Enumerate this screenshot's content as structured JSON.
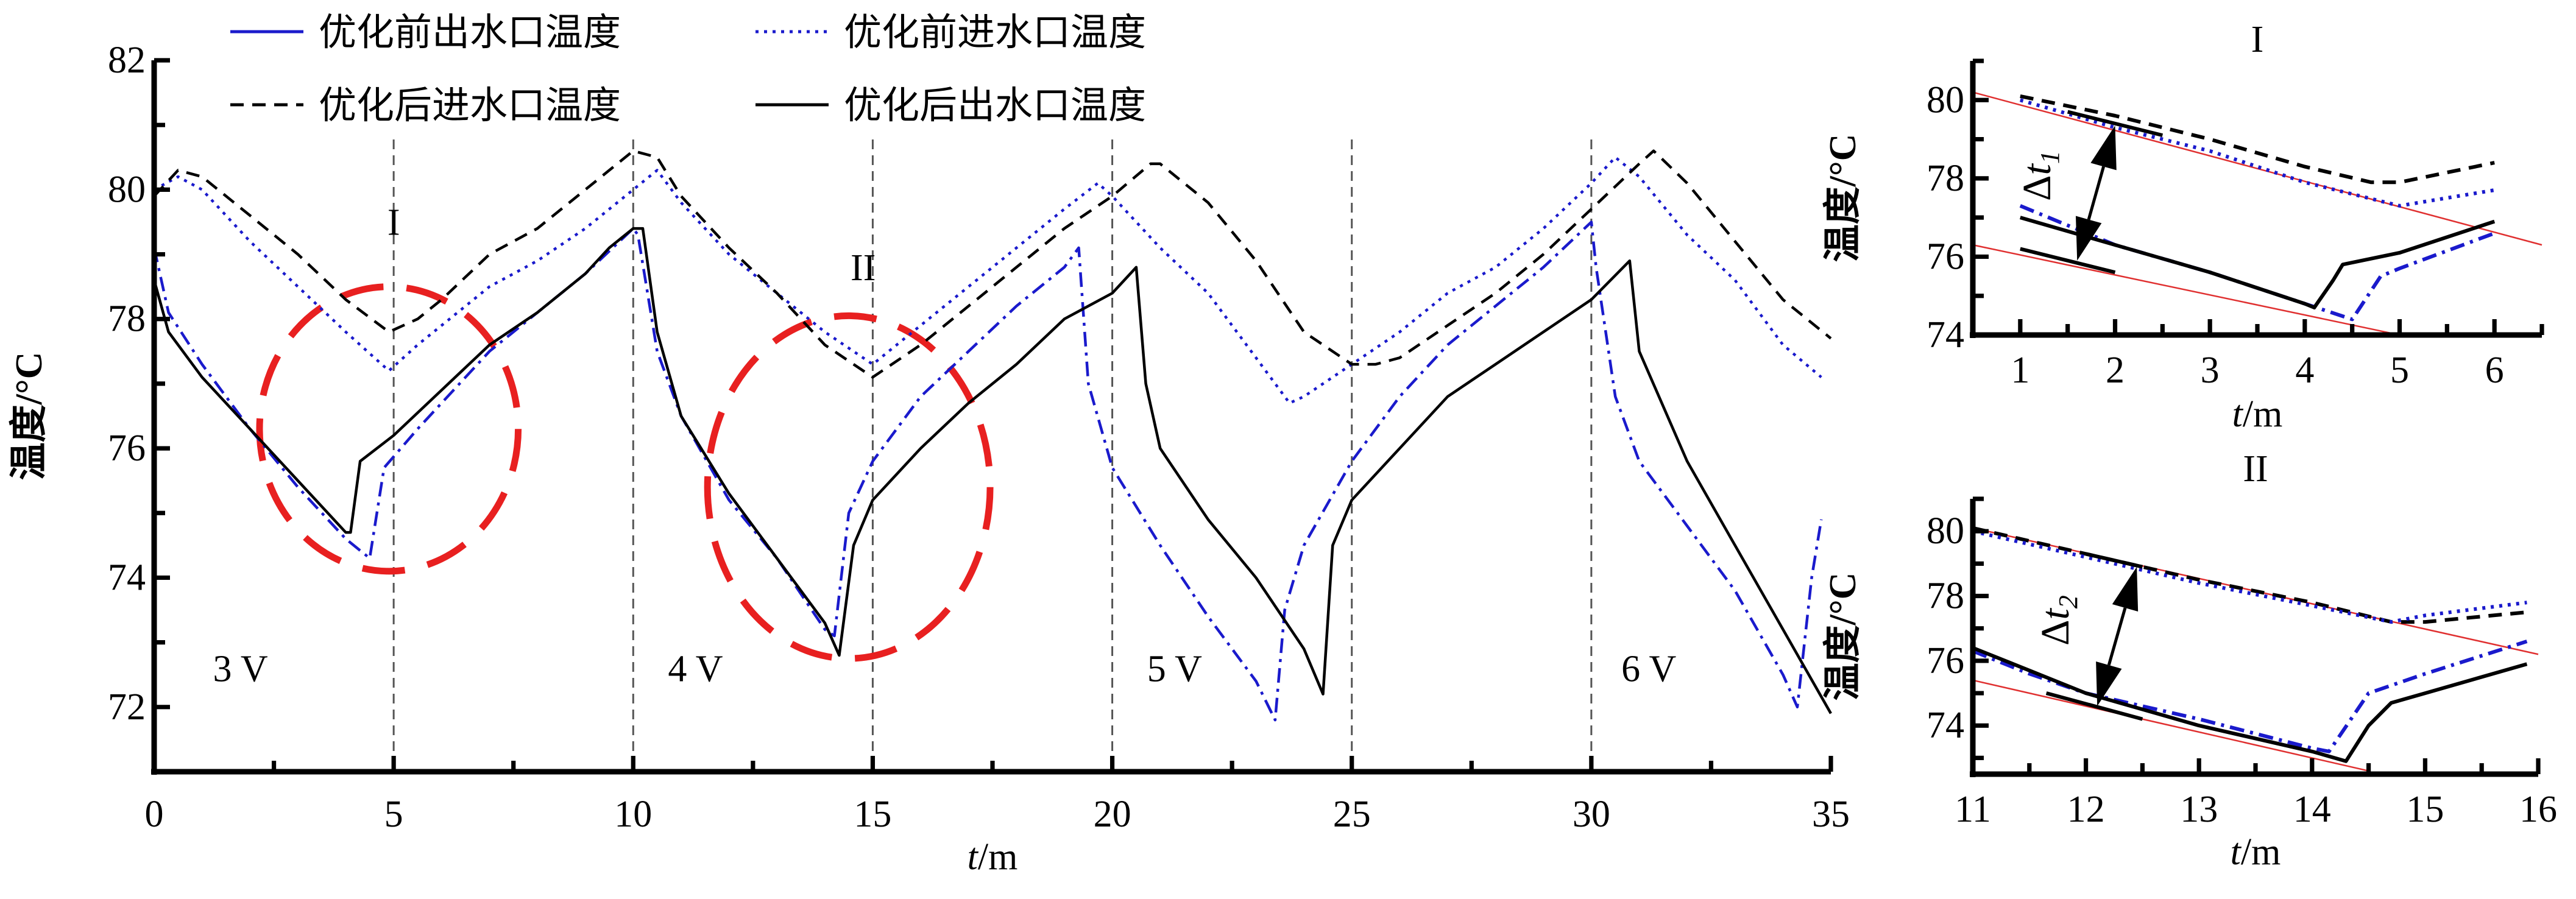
{
  "chart_data": [
    {
      "type": "line",
      "id": "main",
      "xlabel_t": "t",
      "xlabel_unit": "/m",
      "ylabel": "温度/°C",
      "xlim": [
        0,
        35
      ],
      "ylim": [
        71,
        82
      ],
      "xticks": [
        0,
        5,
        10,
        15,
        20,
        25,
        30,
        35
      ],
      "yticks": [
        72,
        74,
        76,
        78,
        80,
        82
      ],
      "vlines": [
        5,
        10,
        15,
        20,
        25,
        30
      ],
      "annotations": [
        {
          "text": "I",
          "x": 5,
          "y": 79.3
        },
        {
          "text": "II",
          "x": 14.8,
          "y": 78.6
        },
        {
          "text": "3 V",
          "x": 1.8,
          "y": 72.4
        },
        {
          "text": "4 V",
          "x": 11.3,
          "y": 72.4
        },
        {
          "text": "5 V",
          "x": 21.3,
          "y": 72.4
        },
        {
          "text": "6 V",
          "x": 31.2,
          "y": 72.4
        }
      ],
      "highlight_ellipses": [
        {
          "label": "I",
          "cx": 4.9,
          "cy": 76.3,
          "rx": 2.7,
          "ry": 2.2
        },
        {
          "label": "II",
          "cx": 14.5,
          "cy": 75.4,
          "rx": 2.95,
          "ry": 2.65
        }
      ],
      "legend_position": "top",
      "series": [
        {
          "name": "优化前出水口温度",
          "style": "dashdot",
          "legend_style": "solid",
          "color": "#1a1acc",
          "x": [
            0,
            0.3,
            1,
            2,
            3,
            4,
            4.5,
            4.8,
            5.5,
            7,
            8,
            9,
            10,
            10.1,
            10.5,
            11,
            12,
            13,
            14,
            14.2,
            14.5,
            15,
            16,
            17,
            18,
            19,
            19.3,
            19.5,
            20,
            21,
            22,
            23,
            23.4,
            23.6,
            24,
            25,
            26,
            27,
            28,
            29,
            30,
            30.1,
            30.5,
            31,
            32,
            33,
            34,
            34.3,
            34.6,
            34.8
          ],
          "y": [
            79.1,
            78.1,
            77.3,
            76.3,
            75.4,
            74.6,
            74.3,
            75.7,
            76.3,
            77.5,
            78.1,
            78.7,
            79.4,
            79.3,
            77.5,
            76.5,
            75.2,
            74.3,
            73.2,
            73.1,
            75.0,
            75.8,
            76.8,
            77.5,
            78.2,
            78.8,
            79.1,
            77.0,
            75.7,
            74.5,
            73.4,
            72.4,
            71.8,
            73.5,
            74.5,
            75.8,
            76.8,
            77.6,
            78.2,
            78.8,
            79.5,
            78.8,
            76.8,
            75.8,
            74.8,
            73.8,
            72.5,
            72.0,
            74.0,
            74.9
          ]
        },
        {
          "name": "优化前进水口温度",
          "style": "dotted",
          "color": "#1a1acc",
          "x": [
            0,
            0.5,
            1,
            2,
            3,
            4,
            4.9,
            5.5,
            7,
            8,
            9,
            10,
            10.5,
            11,
            12,
            13,
            14,
            15,
            15.5,
            16,
            17,
            18,
            19,
            19.7,
            20,
            21,
            22,
            23,
            23.7,
            24,
            25,
            26,
            27,
            28,
            29,
            30,
            30.5,
            31,
            32,
            33,
            34,
            34.8
          ],
          "y": [
            80.0,
            80.2,
            80.0,
            79.2,
            78.5,
            77.8,
            77.2,
            77.6,
            78.5,
            78.9,
            79.4,
            80.0,
            80.3,
            79.8,
            79.0,
            78.4,
            77.8,
            77.3,
            77.6,
            77.9,
            78.5,
            79.1,
            79.7,
            80.1,
            79.9,
            79.1,
            78.4,
            77.4,
            76.7,
            76.8,
            77.3,
            77.8,
            78.4,
            78.8,
            79.4,
            80.1,
            80.5,
            80.2,
            79.3,
            78.6,
            77.6,
            77.1
          ]
        },
        {
          "name": "优化后进水口温度",
          "style": "dashed",
          "color": "#000000",
          "x": [
            0,
            0.5,
            1,
            2,
            3,
            4,
            4.9,
            5.5,
            6,
            7,
            8,
            9,
            10,
            10.5,
            11,
            12,
            13,
            14,
            15,
            16,
            17,
            18,
            19,
            20,
            20.8,
            21,
            22,
            23,
            24,
            25,
            25.5,
            26,
            27,
            28,
            29,
            30,
            31,
            31.3,
            32,
            33,
            34,
            35
          ],
          "y": [
            79.9,
            80.3,
            80.2,
            79.6,
            79.0,
            78.3,
            77.8,
            78.0,
            78.3,
            79.0,
            79.4,
            80.0,
            80.6,
            80.5,
            79.9,
            79.1,
            78.4,
            77.6,
            77.1,
            77.6,
            78.2,
            78.8,
            79.4,
            79.9,
            80.4,
            80.4,
            79.8,
            78.9,
            77.8,
            77.3,
            77.3,
            77.4,
            77.9,
            78.4,
            79.0,
            79.7,
            80.4,
            80.6,
            80.1,
            79.2,
            78.3,
            77.7
          ]
        },
        {
          "name": "优化后出水口温度",
          "style": "solid",
          "color": "#000000",
          "x": [
            0,
            0.3,
            1,
            2,
            3,
            4,
            4.1,
            4.3,
            5,
            6,
            7,
            8,
            9,
            9.5,
            10,
            10.2,
            10.5,
            11,
            12,
            13,
            14,
            14.3,
            14.6,
            15,
            16,
            17,
            18,
            19,
            20,
            20.5,
            20.7,
            21,
            22,
            23,
            24,
            24.4,
            24.6,
            25,
            26,
            27,
            28,
            29,
            30,
            30.8,
            31,
            32,
            33,
            34,
            35
          ],
          "y": [
            78.6,
            77.8,
            77.1,
            76.3,
            75.5,
            74.7,
            74.7,
            75.8,
            76.2,
            76.9,
            77.6,
            78.1,
            78.7,
            79.1,
            79.4,
            79.4,
            77.8,
            76.5,
            75.3,
            74.3,
            73.3,
            72.8,
            74.5,
            75.2,
            76.0,
            76.7,
            77.3,
            78.0,
            78.4,
            78.8,
            77.0,
            76.0,
            74.9,
            74.0,
            72.9,
            72.2,
            74.5,
            75.2,
            76.0,
            76.8,
            77.3,
            77.8,
            78.3,
            78.9,
            77.5,
            75.8,
            74.5,
            73.2,
            71.9
          ]
        }
      ]
    },
    {
      "type": "line",
      "id": "inset-I",
      "title": "I",
      "xlabel_t": "t",
      "xlabel_unit": "/m",
      "ylabel": "温度/°C",
      "xlim": [
        0.5,
        6.5
      ],
      "ylim": [
        74,
        81
      ],
      "xticks": [
        1,
        2,
        3,
        4,
        5,
        6
      ],
      "yticks": [
        74,
        76,
        78,
        80
      ],
      "delta_label": "Δt",
      "delta_sub": "1",
      "series": [
        {
          "name": "优化后进水口温度",
          "style": "dashed",
          "color": "#000000",
          "x": [
            1,
            2,
            3,
            4,
            4.7,
            5,
            6
          ],
          "y": [
            80.1,
            79.6,
            79.0,
            78.3,
            77.9,
            77.9,
            78.4
          ]
        },
        {
          "name": "优化前进水口温度",
          "style": "dotted",
          "color": "#1a1acc",
          "x": [
            1,
            2,
            3,
            4,
            5,
            6
          ],
          "y": [
            80.0,
            79.3,
            78.7,
            77.9,
            77.3,
            77.7
          ]
        },
        {
          "name": "优化前出水口温度",
          "style": "dashdot",
          "color": "#1a1acc",
          "x": [
            1,
            1.5,
            2,
            3,
            4,
            4.5,
            4.8,
            5,
            6
          ],
          "y": [
            77.3,
            76.8,
            76.3,
            75.6,
            74.8,
            74.4,
            75.5,
            75.7,
            76.6
          ]
        },
        {
          "name": "优化后出水口温度",
          "style": "solid",
          "color": "#000000",
          "x": [
            1,
            2,
            3,
            4,
            4.1,
            4.3,
            4.4,
            5,
            6
          ],
          "y": [
            77.0,
            76.3,
            75.6,
            74.8,
            74.7,
            75.4,
            75.8,
            76.1,
            76.9
          ]
        }
      ],
      "reference_lines": [
        {
          "x": [
            0.5,
            6.5
          ],
          "y": [
            80.2,
            76.3
          ],
          "color": "#e03030"
        },
        {
          "x": [
            0.5,
            5.0
          ],
          "y": [
            76.3,
            74.0
          ],
          "color": "#e03030"
        }
      ],
      "tangent_segments": [
        {
          "x": [
            1.5,
            2.5
          ],
          "y": [
            79.7,
            79.1
          ]
        },
        {
          "x": [
            1.0,
            2.0
          ],
          "y": [
            76.2,
            75.6
          ]
        }
      ],
      "arrow": {
        "x": [
          2.0,
          1.6
        ],
        "y": [
          79.35,
          75.9
        ]
      }
    },
    {
      "type": "line",
      "id": "inset-II",
      "title": "II",
      "xlabel_t": "t",
      "xlabel_unit": "/m",
      "ylabel": "温度/°C",
      "xlim": [
        11,
        16
      ],
      "ylim": [
        72.5,
        81
      ],
      "xticks": [
        11,
        12,
        13,
        14,
        15,
        16
      ],
      "yticks": [
        74,
        76,
        78,
        80
      ],
      "delta_label": "Δt",
      "delta_sub": "2",
      "series": [
        {
          "name": "优化后进水口温度",
          "style": "dashed",
          "color": "#000000",
          "x": [
            11,
            12,
            13,
            14,
            14.7,
            15,
            15.9
          ],
          "y": [
            80.1,
            79.3,
            78.5,
            77.8,
            77.2,
            77.2,
            77.5
          ]
        },
        {
          "name": "优化前进水口温度",
          "style": "dotted",
          "color": "#1a1acc",
          "x": [
            11,
            12,
            13,
            14,
            14.7,
            15,
            15.9
          ],
          "y": [
            80.0,
            79.2,
            78.4,
            77.7,
            77.2,
            77.4,
            77.8
          ]
        },
        {
          "name": "优化前出水口温度",
          "style": "dashdot",
          "color": "#1a1acc",
          "x": [
            11,
            11.5,
            12,
            13,
            14,
            14.15,
            14.5,
            15,
            15.9
          ],
          "y": [
            76.3,
            75.6,
            75.0,
            74.2,
            73.3,
            73.2,
            75.0,
            75.6,
            76.6
          ]
        },
        {
          "name": "优化后出水口温度",
          "style": "solid",
          "color": "#000000",
          "x": [
            11,
            11.5,
            12,
            13,
            14,
            14.3,
            14.5,
            14.7,
            15,
            15.9
          ],
          "y": [
            76.4,
            75.7,
            75.0,
            74.0,
            73.2,
            72.9,
            74.0,
            74.7,
            75.0,
            75.9
          ]
        }
      ],
      "reference_lines": [
        {
          "x": [
            11,
            16
          ],
          "y": [
            80.1,
            76.2
          ],
          "color": "#e03030"
        },
        {
          "x": [
            11,
            14.5
          ],
          "y": [
            75.4,
            72.6
          ],
          "color": "#e03030"
        }
      ],
      "tangent_segments": [
        {
          "x": [
            12.0,
            12.5
          ],
          "y": [
            79.3,
            78.9
          ]
        },
        {
          "x": [
            11.65,
            12.5
          ],
          "y": [
            75.0,
            74.2
          ]
        }
      ],
      "arrow": {
        "x": [
          12.45,
          12.1
        ],
        "y": [
          78.9,
          74.6
        ]
      }
    }
  ]
}
